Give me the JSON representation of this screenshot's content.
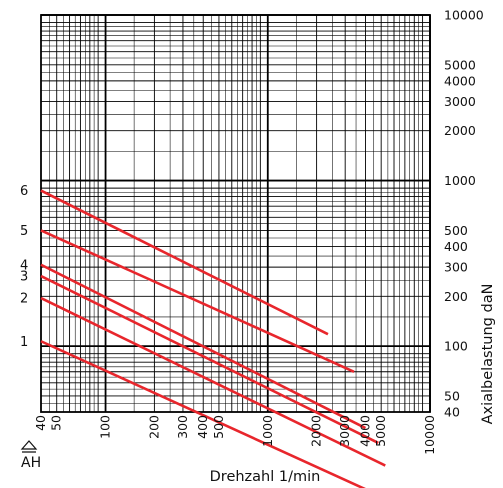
{
  "chart_data": {
    "type": "line",
    "xlabel": "Drehzahl 1/min",
    "ylabel": "Axialbelastung daN",
    "x_scale": "log",
    "y_scale": "log",
    "xlim": [
      40,
      10000
    ],
    "ylim": [
      40,
      10000
    ],
    "grid": true,
    "x_ticks": [
      40,
      50,
      100,
      200,
      300,
      400,
      500,
      1000,
      2000,
      3000,
      4000,
      5000,
      10000
    ],
    "y_ticks": [
      40,
      50,
      100,
      200,
      300,
      400,
      500,
      1000,
      2000,
      3000,
      4000,
      5000,
      10000
    ],
    "left_marker": "AH",
    "series": [
      {
        "name": "1",
        "x": [
          40,
          6500
        ],
        "y": [
          107,
          11
        ]
      },
      {
        "name": "2",
        "x": [
          40,
          5300
        ],
        "y": [
          195,
          19
        ]
      },
      {
        "name": "3",
        "x": [
          40,
          4800
        ],
        "y": [
          265,
          26
        ]
      },
      {
        "name": "4",
        "x": [
          40,
          4000
        ],
        "y": [
          310,
          32
        ]
      },
      {
        "name": "5",
        "x": [
          40,
          3400
        ],
        "y": [
          500,
          70
        ]
      },
      {
        "name": "6",
        "x": [
          40,
          2350
        ],
        "y": [
          870,
          118
        ]
      }
    ],
    "line_color": "#e8262c"
  }
}
